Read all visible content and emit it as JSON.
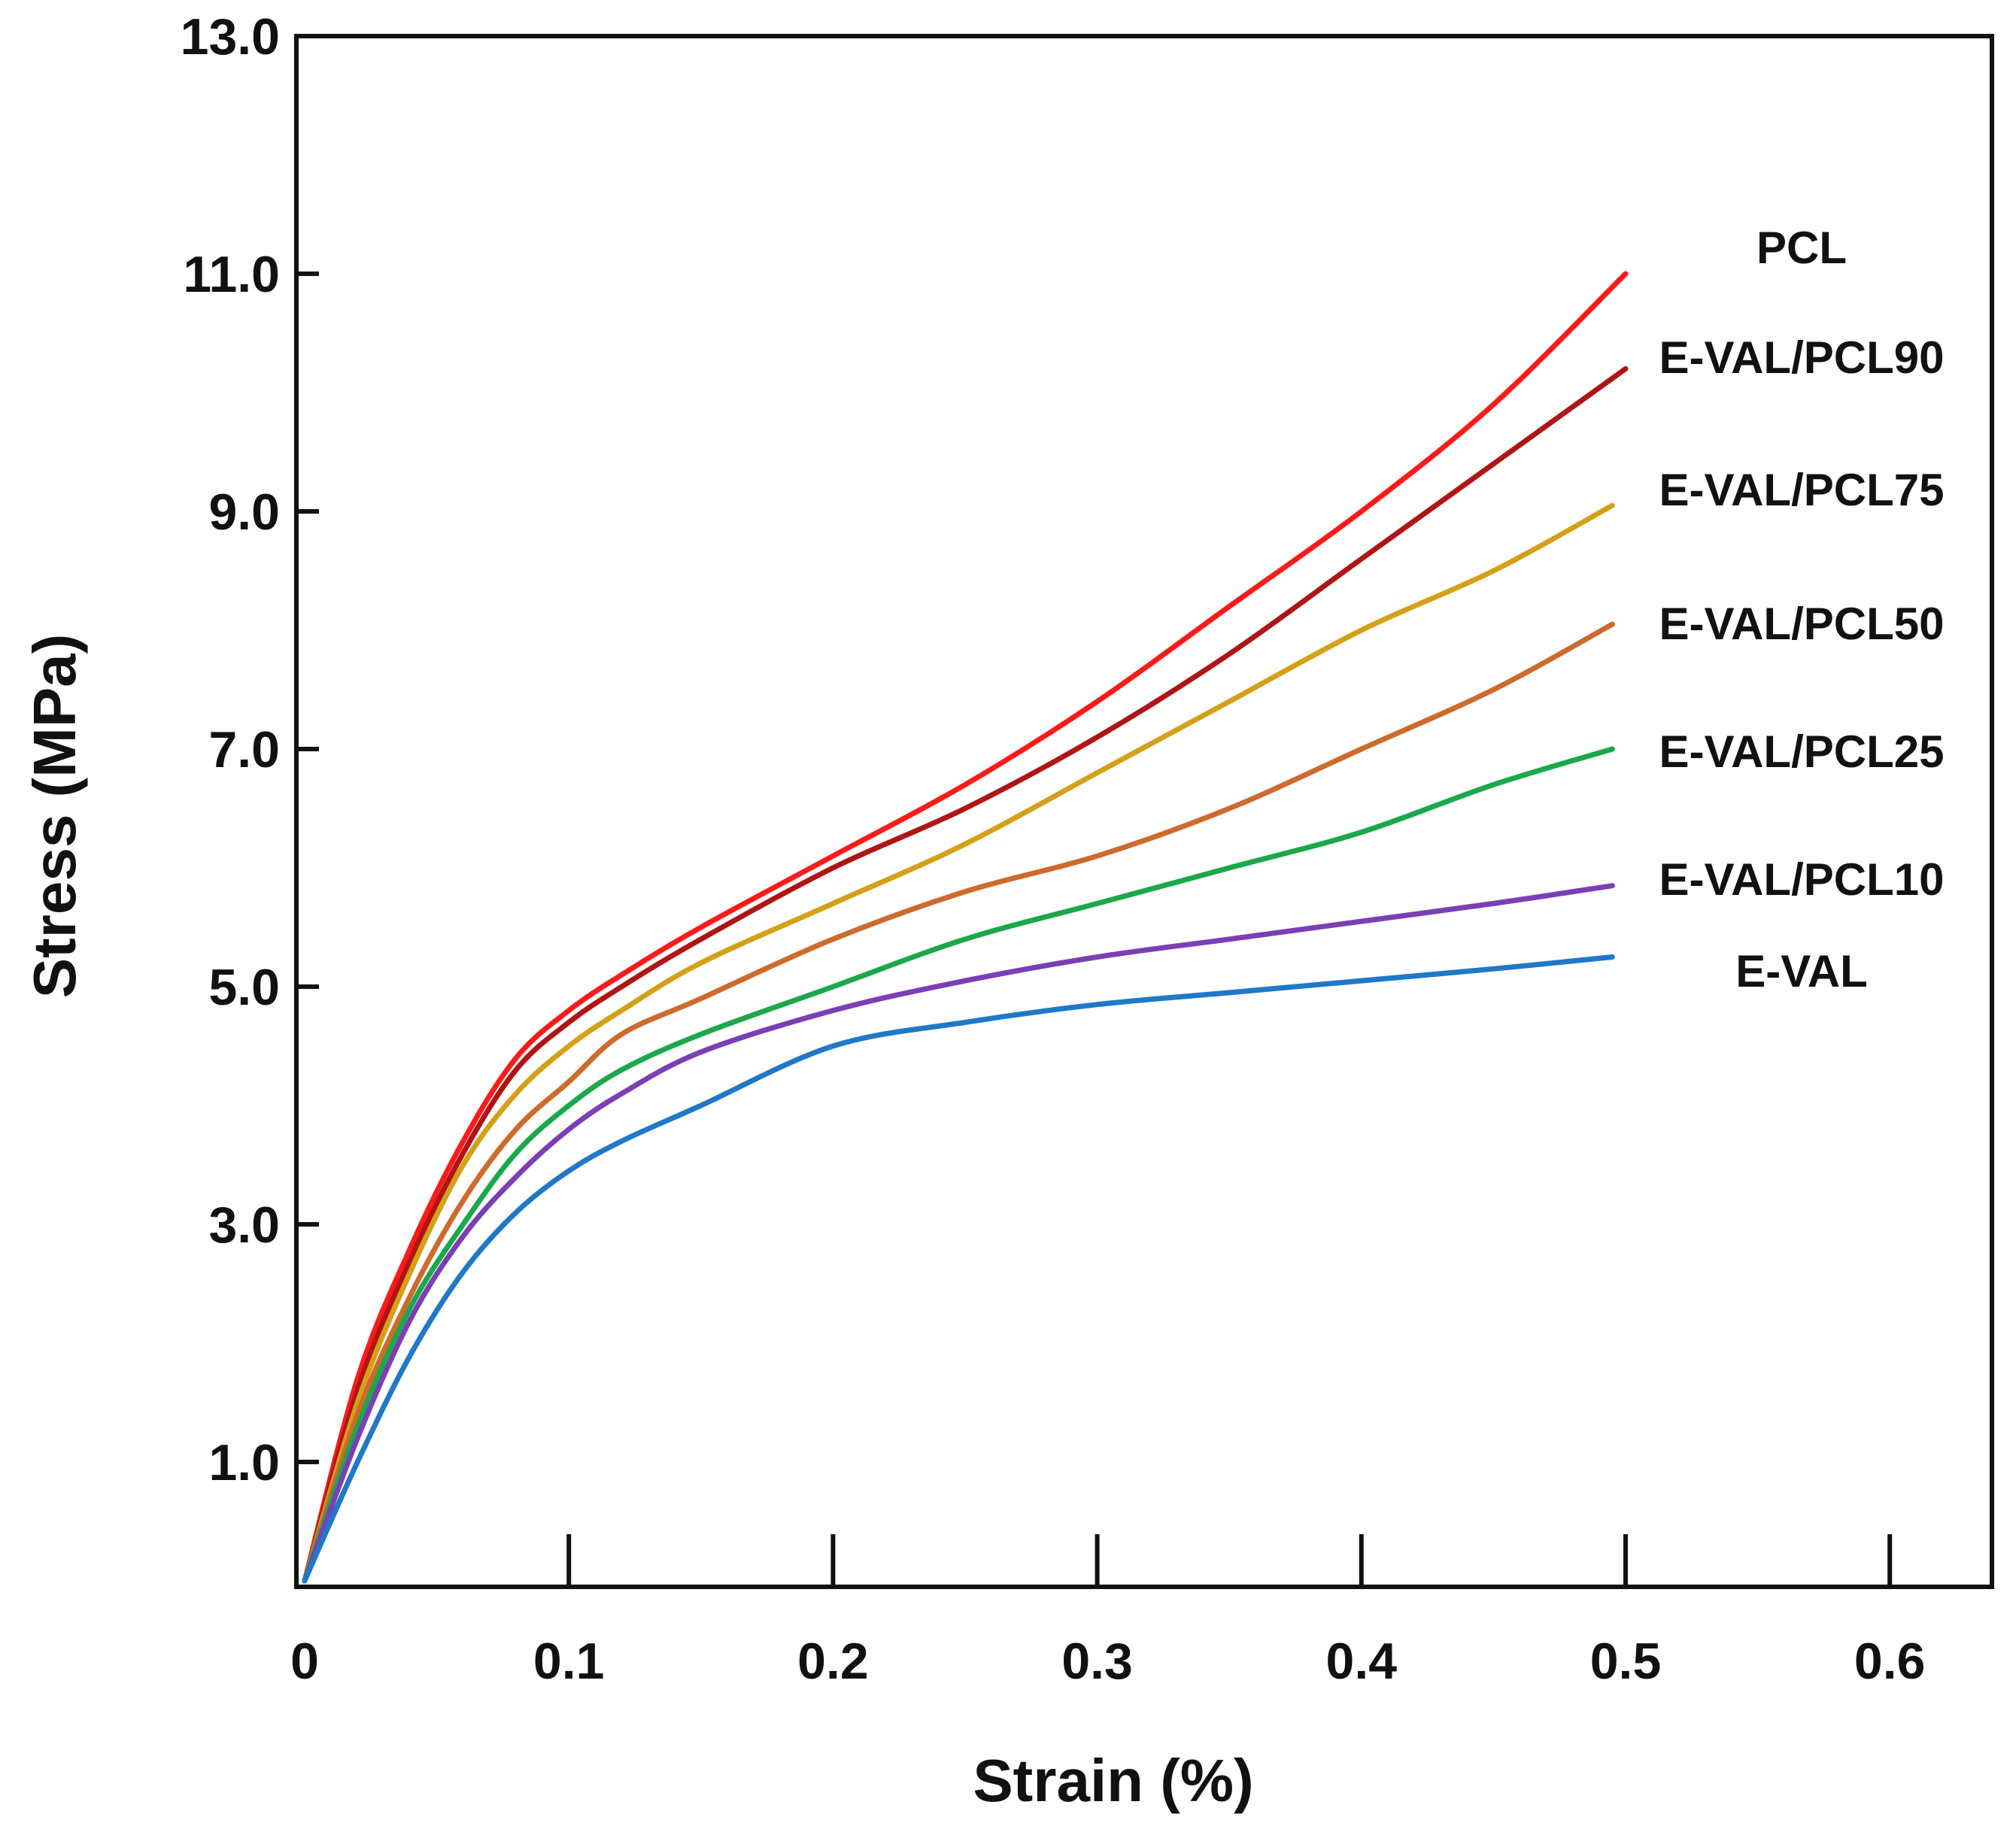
{
  "chart_data": {
    "type": "line",
    "title": "",
    "xlabel": "Strain (%)",
    "ylabel": "Stress (MPa)",
    "xlim": [
      0,
      0.64
    ],
    "ylim": [
      -0.1,
      13.0
    ],
    "x_ticks": [
      0,
      0.1,
      0.2,
      0.3,
      0.4,
      0.5,
      0.6
    ],
    "x_tick_labels": [
      "0",
      "0.1",
      "0.2",
      "0.3",
      "0.4",
      "0.5",
      "0.6"
    ],
    "y_ticks": [
      1.0,
      3.0,
      5.0,
      7.0,
      9.0,
      11.0,
      13.0
    ],
    "y_tick_labels": [
      "1.0",
      "3.0",
      "5.0",
      "7.0",
      "9.0",
      "11.0",
      "13.0"
    ],
    "grid": false,
    "series": [
      {
        "name": "PCL",
        "color": "#ff1a1a",
        "points": [
          [
            0,
            0
          ],
          [
            0.02,
            1.7
          ],
          [
            0.04,
            2.8
          ],
          [
            0.06,
            3.7
          ],
          [
            0.08,
            4.4
          ],
          [
            0.1,
            4.8
          ],
          [
            0.12,
            5.1
          ],
          [
            0.15,
            5.5
          ],
          [
            0.2,
            6.1
          ],
          [
            0.25,
            6.7
          ],
          [
            0.3,
            7.4
          ],
          [
            0.35,
            8.2
          ],
          [
            0.4,
            9.0
          ],
          [
            0.45,
            9.9
          ],
          [
            0.5,
            11.0
          ]
        ]
      },
      {
        "name": "E-VAL/PCL90",
        "color": "#b01414",
        "points": [
          [
            0,
            0
          ],
          [
            0.02,
            1.6
          ],
          [
            0.04,
            2.7
          ],
          [
            0.06,
            3.6
          ],
          [
            0.08,
            4.3
          ],
          [
            0.1,
            4.7
          ],
          [
            0.12,
            5.0
          ],
          [
            0.15,
            5.4
          ],
          [
            0.2,
            6.0
          ],
          [
            0.25,
            6.5
          ],
          [
            0.3,
            7.1
          ],
          [
            0.35,
            7.8
          ],
          [
            0.4,
            8.6
          ],
          [
            0.45,
            9.4
          ],
          [
            0.5,
            10.2
          ]
        ]
      },
      {
        "name": "E-VAL/PCL75",
        "color": "#d4a017",
        "points": [
          [
            0,
            0
          ],
          [
            0.02,
            1.5
          ],
          [
            0.04,
            2.6
          ],
          [
            0.06,
            3.5
          ],
          [
            0.08,
            4.1
          ],
          [
            0.1,
            4.5
          ],
          [
            0.12,
            4.8
          ],
          [
            0.15,
            5.2
          ],
          [
            0.2,
            5.7
          ],
          [
            0.25,
            6.2
          ],
          [
            0.3,
            6.8
          ],
          [
            0.35,
            7.4
          ],
          [
            0.4,
            8.0
          ],
          [
            0.45,
            8.5
          ],
          [
            0.495,
            9.05
          ]
        ]
      },
      {
        "name": "E-VAL/PCL50",
        "color": "#cd6a2c",
        "points": [
          [
            0,
            0
          ],
          [
            0.02,
            1.4
          ],
          [
            0.04,
            2.4
          ],
          [
            0.06,
            3.2
          ],
          [
            0.08,
            3.8
          ],
          [
            0.1,
            4.2
          ],
          [
            0.12,
            4.6
          ],
          [
            0.15,
            4.9
          ],
          [
            0.2,
            5.4
          ],
          [
            0.25,
            5.8
          ],
          [
            0.3,
            6.1
          ],
          [
            0.35,
            6.5
          ],
          [
            0.4,
            7.0
          ],
          [
            0.45,
            7.5
          ],
          [
            0.495,
            8.05
          ]
        ]
      },
      {
        "name": "E-VAL/PCL25",
        "color": "#1aa84a",
        "points": [
          [
            0,
            0
          ],
          [
            0.02,
            1.3
          ],
          [
            0.04,
            2.3
          ],
          [
            0.06,
            3.0
          ],
          [
            0.08,
            3.6
          ],
          [
            0.1,
            4.0
          ],
          [
            0.12,
            4.3
          ],
          [
            0.15,
            4.6
          ],
          [
            0.2,
            5.0
          ],
          [
            0.25,
            5.4
          ],
          [
            0.3,
            5.7
          ],
          [
            0.35,
            6.0
          ],
          [
            0.4,
            6.3
          ],
          [
            0.45,
            6.7
          ],
          [
            0.495,
            7.0
          ]
        ]
      },
      {
        "name": "E-VAL/PCL10",
        "color": "#7b3fb5",
        "points": [
          [
            0,
            0
          ],
          [
            0.02,
            1.2
          ],
          [
            0.04,
            2.2
          ],
          [
            0.06,
            2.9
          ],
          [
            0.08,
            3.4
          ],
          [
            0.1,
            3.8
          ],
          [
            0.12,
            4.1
          ],
          [
            0.15,
            4.45
          ],
          [
            0.2,
            4.8
          ],
          [
            0.25,
            5.05
          ],
          [
            0.3,
            5.25
          ],
          [
            0.35,
            5.4
          ],
          [
            0.4,
            5.55
          ],
          [
            0.45,
            5.7
          ],
          [
            0.495,
            5.85
          ]
        ]
      },
      {
        "name": "E-VAL",
        "color": "#1f78c8",
        "points": [
          [
            0,
            0
          ],
          [
            0.02,
            1.0
          ],
          [
            0.04,
            1.9
          ],
          [
            0.06,
            2.6
          ],
          [
            0.08,
            3.1
          ],
          [
            0.1,
            3.45
          ],
          [
            0.12,
            3.7
          ],
          [
            0.15,
            4.0
          ],
          [
            0.2,
            4.5
          ],
          [
            0.25,
            4.7
          ],
          [
            0.3,
            4.85
          ],
          [
            0.35,
            4.95
          ],
          [
            0.4,
            5.05
          ],
          [
            0.45,
            5.15
          ],
          [
            0.495,
            5.25
          ]
        ]
      }
    ]
  }
}
